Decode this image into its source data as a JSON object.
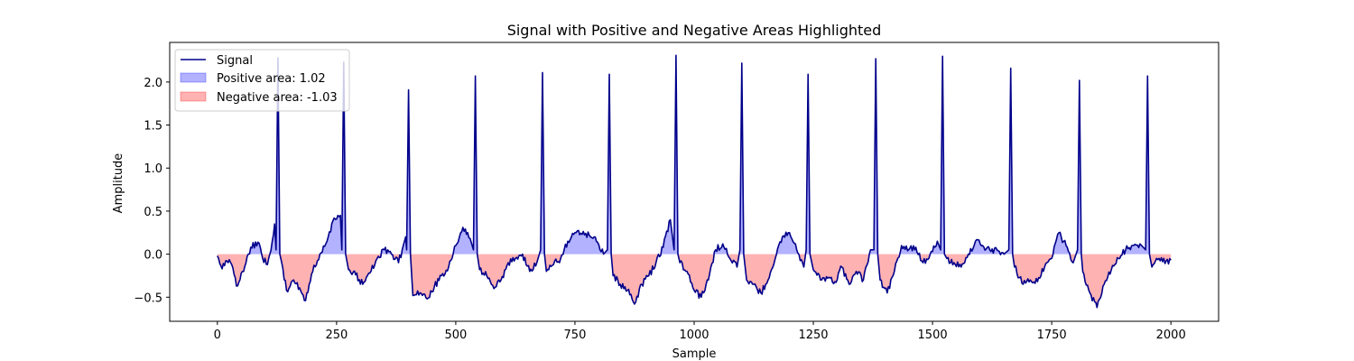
{
  "chart_data": {
    "type": "area",
    "title": "Signal with Positive and Negative Areas Highlighted",
    "xlabel": "Sample",
    "ylabel": "Amplitude",
    "xlim": [
      -100,
      2100
    ],
    "ylim": [
      -0.78,
      2.46
    ],
    "xticks": [
      0,
      250,
      500,
      750,
      1000,
      1250,
      1500,
      1750,
      2000
    ],
    "yticks": [
      -0.5,
      0.0,
      0.5,
      1.0,
      1.5,
      2.0
    ],
    "xtick_labels": [
      "0",
      "250",
      "500",
      "750",
      "1000",
      "1250",
      "1500",
      "1750",
      "2000"
    ],
    "ytick_labels": [
      "−0.5",
      "0.0",
      "0.5",
      "1.0",
      "1.5",
      "2.0"
    ],
    "grid": false,
    "legend_position": "upper-left",
    "series": [
      {
        "name": "Signal",
        "kind": "line",
        "color": "#00008b"
      },
      {
        "name": "Positive area: 1.02",
        "kind": "fill-positive",
        "color": "#0000ff",
        "alpha": 0.3
      },
      {
        "name": "Negative area: -1.03",
        "kind": "fill-negative",
        "color": "#ff0000",
        "alpha": 0.3
      }
    ],
    "peaks": [
      {
        "x": 127,
        "y": 2.28
      },
      {
        "x": 265,
        "y": 2.23
      },
      {
        "x": 401,
        "y": 1.91
      },
      {
        "x": 541,
        "y": 2.07
      },
      {
        "x": 682,
        "y": 2.11
      },
      {
        "x": 822,
        "y": 2.09
      },
      {
        "x": 962,
        "y": 2.31
      },
      {
        "x": 1100,
        "y": 2.22
      },
      {
        "x": 1239,
        "y": 2.09
      },
      {
        "x": 1381,
        "y": 2.27
      },
      {
        "x": 1521,
        "y": 2.3
      },
      {
        "x": 1664,
        "y": 2.16
      },
      {
        "x": 1808,
        "y": 2.02
      },
      {
        "x": 1951,
        "y": 2.07
      }
    ],
    "baseline_points": [
      {
        "x": 0,
        "y": -0.02
      },
      {
        "x": 10,
        "y": -0.17
      },
      {
        "x": 20,
        "y": -0.08
      },
      {
        "x": 30,
        "y": -0.12
      },
      {
        "x": 40,
        "y": -0.37
      },
      {
        "x": 55,
        "y": -0.2
      },
      {
        "x": 70,
        "y": 0.08
      },
      {
        "x": 85,
        "y": 0.14
      },
      {
        "x": 95,
        "y": -0.05
      },
      {
        "x": 105,
        "y": -0.12
      },
      {
        "x": 115,
        "y": 0.15
      },
      {
        "x": 120,
        "y": 0.35
      },
      {
        "x": 135,
        "y": -0.1
      },
      {
        "x": 145,
        "y": -0.42
      },
      {
        "x": 160,
        "y": -0.3
      },
      {
        "x": 175,
        "y": -0.43
      },
      {
        "x": 185,
        "y": -0.54
      },
      {
        "x": 200,
        "y": -0.2
      },
      {
        "x": 215,
        "y": 0.0
      },
      {
        "x": 230,
        "y": 0.15
      },
      {
        "x": 245,
        "y": 0.42
      },
      {
        "x": 258,
        "y": 0.45
      },
      {
        "x": 275,
        "y": -0.18
      },
      {
        "x": 290,
        "y": -0.24
      },
      {
        "x": 305,
        "y": -0.35
      },
      {
        "x": 320,
        "y": -0.22
      },
      {
        "x": 335,
        "y": -0.05
      },
      {
        "x": 350,
        "y": 0.05
      },
      {
        "x": 365,
        "y": 0.0
      },
      {
        "x": 380,
        "y": -0.1
      },
      {
        "x": 395,
        "y": 0.2
      },
      {
        "x": 410,
        "y": -0.48
      },
      {
        "x": 425,
        "y": -0.45
      },
      {
        "x": 440,
        "y": -0.52
      },
      {
        "x": 455,
        "y": -0.38
      },
      {
        "x": 470,
        "y": -0.25
      },
      {
        "x": 485,
        "y": -0.15
      },
      {
        "x": 500,
        "y": 0.1
      },
      {
        "x": 515,
        "y": 0.31
      },
      {
        "x": 530,
        "y": 0.18
      },
      {
        "x": 550,
        "y": -0.18
      },
      {
        "x": 565,
        "y": -0.25
      },
      {
        "x": 580,
        "y": -0.4
      },
      {
        "x": 595,
        "y": -0.3
      },
      {
        "x": 610,
        "y": -0.1
      },
      {
        "x": 625,
        "y": -0.05
      },
      {
        "x": 640,
        "y": 0.0
      },
      {
        "x": 655,
        "y": -0.2
      },
      {
        "x": 670,
        "y": -0.1
      },
      {
        "x": 690,
        "y": -0.2
      },
      {
        "x": 705,
        "y": -0.12
      },
      {
        "x": 720,
        "y": -0.05
      },
      {
        "x": 735,
        "y": 0.15
      },
      {
        "x": 750,
        "y": 0.25
      },
      {
        "x": 765,
        "y": 0.23
      },
      {
        "x": 780,
        "y": 0.22
      },
      {
        "x": 795,
        "y": 0.15
      },
      {
        "x": 810,
        "y": 0.0
      },
      {
        "x": 830,
        "y": -0.25
      },
      {
        "x": 845,
        "y": -0.35
      },
      {
        "x": 860,
        "y": -0.42
      },
      {
        "x": 875,
        "y": -0.58
      },
      {
        "x": 890,
        "y": -0.35
      },
      {
        "x": 905,
        "y": -0.25
      },
      {
        "x": 920,
        "y": -0.1
      },
      {
        "x": 935,
        "y": 0.08
      },
      {
        "x": 950,
        "y": 0.4
      },
      {
        "x": 970,
        "y": -0.1
      },
      {
        "x": 985,
        "y": -0.2
      },
      {
        "x": 1000,
        "y": -0.42
      },
      {
        "x": 1015,
        "y": -0.5
      },
      {
        "x": 1030,
        "y": -0.3
      },
      {
        "x": 1045,
        "y": 0.05
      },
      {
        "x": 1060,
        "y": 0.12
      },
      {
        "x": 1075,
        "y": -0.05
      },
      {
        "x": 1090,
        "y": -0.15
      },
      {
        "x": 1110,
        "y": -0.3
      },
      {
        "x": 1125,
        "y": -0.35
      },
      {
        "x": 1140,
        "y": -0.45
      },
      {
        "x": 1155,
        "y": -0.3
      },
      {
        "x": 1170,
        "y": -0.05
      },
      {
        "x": 1185,
        "y": 0.2
      },
      {
        "x": 1200,
        "y": 0.25
      },
      {
        "x": 1215,
        "y": 0.05
      },
      {
        "x": 1230,
        "y": -0.15
      },
      {
        "x": 1250,
        "y": -0.18
      },
      {
        "x": 1265,
        "y": -0.3
      },
      {
        "x": 1280,
        "y": -0.28
      },
      {
        "x": 1295,
        "y": -0.32
      },
      {
        "x": 1310,
        "y": -0.15
      },
      {
        "x": 1325,
        "y": -0.35
      },
      {
        "x": 1340,
        "y": -0.2
      },
      {
        "x": 1355,
        "y": -0.3
      },
      {
        "x": 1370,
        "y": 0.05
      },
      {
        "x": 1390,
        "y": -0.3
      },
      {
        "x": 1405,
        "y": -0.45
      },
      {
        "x": 1420,
        "y": -0.2
      },
      {
        "x": 1435,
        "y": 0.1
      },
      {
        "x": 1450,
        "y": 0.05
      },
      {
        "x": 1465,
        "y": 0.08
      },
      {
        "x": 1480,
        "y": -0.1
      },
      {
        "x": 1495,
        "y": 0.0
      },
      {
        "x": 1510,
        "y": 0.15
      },
      {
        "x": 1530,
        "y": -0.05
      },
      {
        "x": 1545,
        "y": -0.1
      },
      {
        "x": 1560,
        "y": -0.15
      },
      {
        "x": 1575,
        "y": 0.0
      },
      {
        "x": 1590,
        "y": 0.15
      },
      {
        "x": 1605,
        "y": 0.1
      },
      {
        "x": 1620,
        "y": 0.05
      },
      {
        "x": 1635,
        "y": 0.05
      },
      {
        "x": 1650,
        "y": 0.0
      },
      {
        "x": 1672,
        "y": -0.15
      },
      {
        "x": 1690,
        "y": -0.35
      },
      {
        "x": 1705,
        "y": -0.3
      },
      {
        "x": 1720,
        "y": -0.32
      },
      {
        "x": 1735,
        "y": -0.15
      },
      {
        "x": 1750,
        "y": -0.05
      },
      {
        "x": 1765,
        "y": 0.25
      },
      {
        "x": 1780,
        "y": 0.1
      },
      {
        "x": 1795,
        "y": -0.1
      },
      {
        "x": 1815,
        "y": -0.2
      },
      {
        "x": 1830,
        "y": -0.45
      },
      {
        "x": 1845,
        "y": -0.62
      },
      {
        "x": 1860,
        "y": -0.35
      },
      {
        "x": 1875,
        "y": -0.18
      },
      {
        "x": 1890,
        "y": -0.05
      },
      {
        "x": 1905,
        "y": 0.05
      },
      {
        "x": 1920,
        "y": 0.1
      },
      {
        "x": 1935,
        "y": 0.12
      },
      {
        "x": 1960,
        "y": -0.15
      },
      {
        "x": 1975,
        "y": -0.05
      },
      {
        "x": 1990,
        "y": -0.08
      },
      {
        "x": 2000,
        "y": -0.07
      }
    ]
  }
}
